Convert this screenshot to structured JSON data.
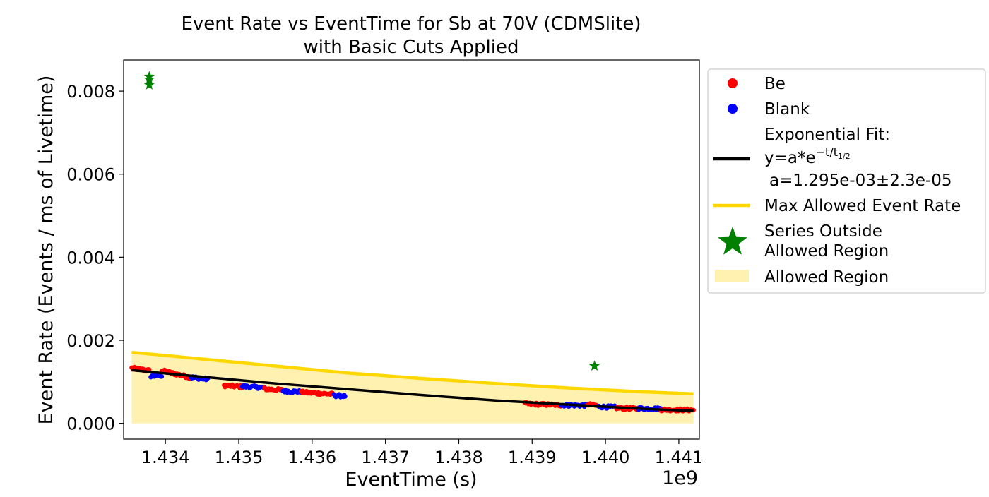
{
  "chart_data": {
    "type": "scatter",
    "title": "Event Rate vs EventTime for Sb at 70V (CDMSlite)",
    "subtitle": "with Basic Cuts Applied",
    "xlabel": "EventTime (s)",
    "ylabel": "Event Rate (Events / ms of Livetime)",
    "x_offset_label": "1e9",
    "xlim": [
      1.43343,
      1.44128
    ],
    "ylim": [
      -0.00038,
      0.00875
    ],
    "x_ticks": [
      1.434,
      1.435,
      1.436,
      1.437,
      1.438,
      1.439,
      1.44,
      1.441
    ],
    "x_tick_labels": [
      "1.434",
      "1.435",
      "1.436",
      "1.437",
      "1.438",
      "1.439",
      "1.440",
      "1.441"
    ],
    "y_ticks": [
      0.0,
      0.002,
      0.004,
      0.006,
      0.008
    ],
    "y_tick_labels": [
      "0.000",
      "0.002",
      "0.004",
      "0.006",
      "0.008"
    ],
    "grid": false,
    "legend_position": "outside-right",
    "colors": {
      "be": "#ff0000",
      "blank": "#0000ff",
      "fit": "#000000",
      "max_allowed": "#ffd700",
      "outside": "#008000",
      "region": "#fff2b0"
    },
    "legend": {
      "be": "Be",
      "blank": "Blank",
      "fit_line1": "Exponential Fit:",
      "fit_line2": "y=a*e",
      "fit_exponent": "−t/t",
      "fit_exponent_sub": "1/2",
      "fit_line3": "a=1.295e-03±2.3e-05",
      "max_allowed": "Max Allowed Event Rate",
      "outside_line1": "Series Outside",
      "outside_line2": "Allowed Region",
      "region": "Allowed Region"
    },
    "segments": [
      {
        "x0": 1.43354,
        "x1": 1.43378,
        "y0": 0.00133,
        "y1": 0.00127,
        "series": "Be"
      },
      {
        "x0": 1.4338,
        "x1": 1.43395,
        "y0": 0.00114,
        "y1": 0.00115,
        "series": "Blank"
      },
      {
        "x0": 1.43395,
        "x1": 1.43435,
        "y0": 0.00127,
        "y1": 0.0011,
        "series": "Be"
      },
      {
        "x0": 1.43435,
        "x1": 1.43458,
        "y0": 0.00111,
        "y1": 0.00106,
        "series": "Blank"
      },
      {
        "x0": 1.4348,
        "x1": 1.43505,
        "y0": 0.00091,
        "y1": 0.00088,
        "series": "Be"
      },
      {
        "x0": 1.43505,
        "x1": 1.43535,
        "y0": 0.00089,
        "y1": 0.00086,
        "series": "Blank"
      },
      {
        "x0": 1.43535,
        "x1": 1.4356,
        "y0": 0.00083,
        "y1": 0.0008,
        "series": "Be"
      },
      {
        "x0": 1.4356,
        "x1": 1.43585,
        "y0": 0.00078,
        "y1": 0.00076,
        "series": "Blank"
      },
      {
        "x0": 1.43585,
        "x1": 1.4363,
        "y0": 0.00075,
        "y1": 0.0007,
        "series": "Be"
      },
      {
        "x0": 1.4363,
        "x1": 1.43645,
        "y0": 0.00067,
        "y1": 0.00066,
        "series": "Blank"
      },
      {
        "x0": 1.4389,
        "x1": 1.4394,
        "y0": 0.00047,
        "y1": 0.00044,
        "series": "Be"
      },
      {
        "x0": 1.4394,
        "x1": 1.43975,
        "y0": 0.00044,
        "y1": 0.00043,
        "series": "Blank"
      },
      {
        "x0": 1.43975,
        "x1": 1.4399,
        "y0": 0.00046,
        "y1": 0.00042,
        "series": "Be"
      },
      {
        "x0": 1.4399,
        "x1": 1.44015,
        "y0": 0.0004,
        "y1": 0.00039,
        "series": "Blank"
      },
      {
        "x0": 1.44015,
        "x1": 1.44045,
        "y0": 0.00037,
        "y1": 0.00035,
        "series": "Be"
      },
      {
        "x0": 1.44045,
        "x1": 1.44075,
        "y0": 0.00036,
        "y1": 0.00035,
        "series": "Blank"
      },
      {
        "x0": 1.44075,
        "x1": 1.4412,
        "y0": 0.00033,
        "y1": 0.00032,
        "series": "Be"
      }
    ],
    "outside_points": [
      {
        "x": 1.43378,
        "y": 0.00835
      },
      {
        "x": 1.43378,
        "y": 0.00828
      },
      {
        "x": 1.43378,
        "y": 0.00815
      },
      {
        "x": 1.43985,
        "y": 0.00138
      }
    ],
    "fit_curve": {
      "x": [
        1.43354,
        1.4345,
        1.4355,
        1.4365,
        1.4375,
        1.4385,
        1.4395,
        1.4405,
        1.4412
      ],
      "y": [
        0.00128,
        0.00112,
        0.00096,
        0.00082,
        0.00068,
        0.00055,
        0.00045,
        0.00035,
        0.0003
      ]
    },
    "max_allowed_curve": {
      "x": [
        1.43354,
        1.4345,
        1.4355,
        1.4365,
        1.4375,
        1.4385,
        1.4395,
        1.4405,
        1.4412
      ],
      "y": [
        0.00171,
        0.00155,
        0.00138,
        0.00121,
        0.00108,
        0.00096,
        0.00085,
        0.00076,
        0.00071
      ]
    }
  }
}
